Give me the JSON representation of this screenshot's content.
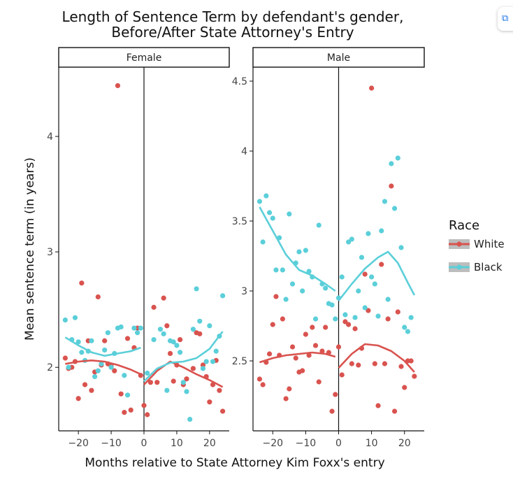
{
  "chart_data": {
    "type": "scatter",
    "title": "Length of Sentence Term by defendant's gender,\nBefore/After State Attorney's Entry",
    "xlabel": "Months relative to State Attorney Kim Foxx's entry",
    "ylabel": "Mean sentence term (in years)",
    "legend": {
      "title": "Race",
      "position": "right"
    },
    "colors": {
      "White": "#d9534f",
      "Black": "#5bcfd9"
    },
    "x_ticks": [
      -20,
      -10,
      0,
      10,
      20
    ],
    "x_tick_labels": [
      "−20",
      "−10",
      "0",
      "10",
      "20"
    ],
    "xlim": [
      -26,
      26
    ],
    "vline_x": 0,
    "facets": [
      {
        "label": "Female",
        "ylim": [
          1.45,
          4.6
        ],
        "y_ticks": [
          2,
          3,
          4
        ],
        "y_tick_labels": [
          "2",
          "3",
          "4"
        ],
        "series": [
          {
            "name": "White",
            "points": [
              [
                -24,
                2.08
              ],
              [
                -23,
                1.99
              ],
              [
                -22,
                2.0
              ],
              [
                -21,
                2.05
              ],
              [
                -20,
                1.73
              ],
              [
                -19,
                2.73
              ],
              [
                -18,
                1.85
              ],
              [
                -17,
                2.23
              ],
              [
                -16,
                1.8
              ],
              [
                -15,
                1.96
              ],
              [
                -14,
                2.61
              ],
              [
                -13,
                2.02
              ],
              [
                -12,
                2.23
              ],
              [
                -11,
                2.03
              ],
              [
                -10,
                2.01
              ],
              [
                -9,
                1.97
              ],
              [
                -8,
                4.44
              ],
              [
                -7,
                1.77
              ],
              [
                -6,
                1.61
              ],
              [
                -5,
                2.25
              ],
              [
                -4,
                1.63
              ],
              [
                -3,
                2.17
              ],
              [
                -2,
                2.34
              ],
              [
                -1,
                1.93
              ],
              [
                0,
                1.67
              ],
              [
                1,
                1.59
              ],
              [
                2,
                1.87
              ],
              [
                3,
                2.52
              ],
              [
                4,
                1.87
              ],
              [
                6,
                2.6
              ],
              [
                7,
                2.36
              ],
              [
                8,
                2.12
              ],
              [
                9,
                1.88
              ],
              [
                10,
                2.02
              ],
              [
                11,
                2.24
              ],
              [
                12,
                1.85
              ],
              [
                13,
                1.9
              ],
              [
                15,
                1.99
              ],
              [
                16,
                2.3
              ],
              [
                17,
                2.29
              ],
              [
                18,
                2.02
              ],
              [
                19,
                1.92
              ],
              [
                20,
                1.7
              ],
              [
                21,
                1.85
              ],
              [
                22,
                2.06
              ],
              [
                23,
                1.8
              ],
              [
                24,
                1.62
              ]
            ],
            "smooth": [
              [
                -24,
                2.03
              ],
              [
                -20,
                2.05
              ],
              [
                -16,
                2.06
              ],
              [
                -12,
                2.05
              ],
              [
                -8,
                2.02
              ],
              [
                -4,
                1.98
              ],
              [
                -1,
                1.94
              ],
              [
                0,
                1.85
              ],
              [
                4,
                1.97
              ],
              [
                8,
                2.05
              ],
              [
                12,
                2.0
              ],
              [
                16,
                1.94
              ],
              [
                20,
                1.89
              ],
              [
                24,
                1.83
              ]
            ]
          },
          {
            "name": "Black",
            "points": [
              [
                -24,
                2.41
              ],
              [
                -23,
                2.0
              ],
              [
                -22,
                2.24
              ],
              [
                -21,
                2.43
              ],
              [
                -20,
                2.22
              ],
              [
                -19,
                2.13
              ],
              [
                -18,
                2.06
              ],
              [
                -17,
                2.14
              ],
              [
                -16,
                2.23
              ],
              [
                -15,
                1.92
              ],
              [
                -14,
                1.97
              ],
              [
                -13,
                2.03
              ],
              [
                -12,
                2.15
              ],
              [
                -11,
                2.3
              ],
              [
                -10,
                2.0
              ],
              [
                -9,
                2.12
              ],
              [
                -8,
                2.34
              ],
              [
                -7,
                2.35
              ],
              [
                -6,
                1.93
              ],
              [
                -5,
                1.76
              ],
              [
                -3,
                2.34
              ],
              [
                -2,
                2.3
              ],
              [
                -1,
                2.34
              ],
              [
                1,
                1.95
              ],
              [
                3,
                2.24
              ],
              [
                5,
                2.33
              ],
              [
                6,
                2.29
              ],
              [
                7,
                1.8
              ],
              [
                8,
                2.23
              ],
              [
                9,
                2.22
              ],
              [
                10,
                2.19
              ],
              [
                11,
                2.13
              ],
              [
                12,
                1.87
              ],
              [
                13,
                1.79
              ],
              [
                14,
                1.55
              ],
              [
                15,
                2.33
              ],
              [
                16,
                2.68
              ],
              [
                17,
                2.4
              ],
              [
                18,
                1.99
              ],
              [
                19,
                2.05
              ],
              [
                20,
                2.36
              ],
              [
                21,
                2.05
              ],
              [
                22,
                2.14
              ],
              [
                23,
                2.27
              ],
              [
                24,
                2.62
              ]
            ],
            "smooth": [
              [
                -24,
                2.26
              ],
              [
                -20,
                2.19
              ],
              [
                -16,
                2.13
              ],
              [
                -12,
                2.1
              ],
              [
                -8,
                2.12
              ],
              [
                -4,
                2.14
              ],
              [
                -1,
                2.17
              ],
              [
                0,
                1.88
              ],
              [
                4,
                1.99
              ],
              [
                8,
                2.04
              ],
              [
                12,
                2.05
              ],
              [
                16,
                2.08
              ],
              [
                20,
                2.16
              ],
              [
                24,
                2.31
              ]
            ]
          }
        ]
      },
      {
        "label": "Male",
        "ylim": [
          2.0,
          4.6
        ],
        "y_ticks": [
          2.5,
          3,
          3.5,
          4,
          4.5
        ],
        "y_tick_labels": [
          "2.5",
          "3",
          "3.5",
          "4",
          "4.5"
        ],
        "series": [
          {
            "name": "White",
            "points": [
              [
                -24,
                2.37
              ],
              [
                -23,
                2.33
              ],
              [
                -22,
                2.49
              ],
              [
                -21,
                2.55
              ],
              [
                -20,
                2.76
              ],
              [
                -19,
                2.96
              ],
              [
                -18,
                2.54
              ],
              [
                -17,
                2.8
              ],
              [
                -16,
                2.23
              ],
              [
                -15,
                2.3
              ],
              [
                -14,
                2.6
              ],
              [
                -13,
                2.52
              ],
              [
                -12,
                2.42
              ],
              [
                -11,
                2.43
              ],
              [
                -10,
                2.69
              ],
              [
                -9,
                2.54
              ],
              [
                -8,
                2.74
              ],
              [
                -7,
                2.61
              ],
              [
                -6,
                2.35
              ],
              [
                -5,
                2.57
              ],
              [
                -4,
                2.74
              ],
              [
                -3,
                2.56
              ],
              [
                -2,
                2.14
              ],
              [
                -1,
                2.26
              ],
              [
                0,
                2.6
              ],
              [
                1,
                2.4
              ],
              [
                2,
                2.78
              ],
              [
                3,
                2.76
              ],
              [
                4,
                2.48
              ],
              [
                5,
                2.73
              ],
              [
                6,
                2.47
              ],
              [
                7,
                2.59
              ],
              [
                8,
                3.12
              ],
              [
                9,
                2.86
              ],
              [
                10,
                4.45
              ],
              [
                11,
                2.48
              ],
              [
                12,
                2.18
              ],
              [
                13,
                3.19
              ],
              [
                14,
                2.48
              ],
              [
                15,
                2.8
              ],
              [
                16,
                3.75
              ],
              [
                17,
                2.14
              ],
              [
                18,
                2.85
              ],
              [
                19,
                2.46
              ],
              [
                20,
                2.31
              ],
              [
                21,
                2.5
              ],
              [
                22,
                2.5
              ],
              [
                23,
                2.39
              ]
            ],
            "smooth": [
              [
                -24,
                2.49
              ],
              [
                -20,
                2.52
              ],
              [
                -16,
                2.54
              ],
              [
                -12,
                2.55
              ],
              [
                -8,
                2.56
              ],
              [
                -4,
                2.55
              ],
              [
                -1,
                2.53
              ],
              [
                0,
                2.45
              ],
              [
                4,
                2.55
              ],
              [
                8,
                2.62
              ],
              [
                12,
                2.61
              ],
              [
                16,
                2.57
              ],
              [
                20,
                2.5
              ],
              [
                23,
                2.42
              ]
            ]
          },
          {
            "name": "Black",
            "points": [
              [
                -24,
                3.64
              ],
              [
                -23,
                3.35
              ],
              [
                -22,
                3.68
              ],
              [
                -21,
                3.56
              ],
              [
                -20,
                3.52
              ],
              [
                -19,
                3.15
              ],
              [
                -18,
                3.38
              ],
              [
                -17,
                3.15
              ],
              [
                -16,
                2.94
              ],
              [
                -15,
                3.55
              ],
              [
                -14,
                3.05
              ],
              [
                -13,
                3.2
              ],
              [
                -12,
                3.28
              ],
              [
                -11,
                3.0
              ],
              [
                -10,
                3.29
              ],
              [
                -9,
                3.14
              ],
              [
                -8,
                3.1
              ],
              [
                -7,
                2.8
              ],
              [
                -6,
                3.47
              ],
              [
                -5,
                3.05
              ],
              [
                -4,
                3.02
              ],
              [
                -3,
                2.91
              ],
              [
                -2,
                2.9
              ],
              [
                -1,
                2.8
              ],
              [
                0,
                2.95
              ],
              [
                1,
                3.1
              ],
              [
                2,
                2.83
              ],
              [
                3,
                3.35
              ],
              [
                4,
                3.37
              ],
              [
                5,
                2.81
              ],
              [
                6,
                3.0
              ],
              [
                7,
                3.24
              ],
              [
                8,
                2.88
              ],
              [
                9,
                3.41
              ],
              [
                10,
                3.1
              ],
              [
                11,
                3.05
              ],
              [
                12,
                2.82
              ],
              [
                13,
                3.43
              ],
              [
                14,
                3.64
              ],
              [
                15,
                2.94
              ],
              [
                16,
                3.91
              ],
              [
                17,
                3.59
              ],
              [
                18,
                3.95
              ],
              [
                19,
                3.31
              ],
              [
                20,
                2.74
              ],
              [
                21,
                2.71
              ],
              [
                22,
                2.81
              ]
            ],
            "smooth": [
              [
                -24,
                3.6
              ],
              [
                -20,
                3.43
              ],
              [
                -16,
                3.26
              ],
              [
                -12,
                3.15
              ],
              [
                -8,
                3.11
              ],
              [
                -4,
                3.05
              ],
              [
                -1,
                3.0
              ],
              [
                0,
                2.93
              ],
              [
                4,
                3.05
              ],
              [
                8,
                3.16
              ],
              [
                12,
                3.24
              ],
              [
                15,
                3.28
              ],
              [
                18,
                3.2
              ],
              [
                21,
                3.06
              ],
              [
                23,
                2.97
              ]
            ]
          }
        ]
      }
    ]
  }
}
